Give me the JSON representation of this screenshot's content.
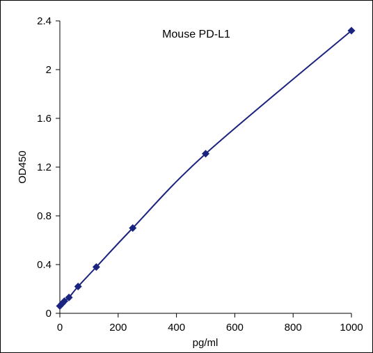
{
  "chart_data": {
    "type": "scatter",
    "title": "Mouse PD-L1",
    "xlabel": "pg/ml",
    "ylabel": "OD450",
    "xlim": [
      0,
      1000
    ],
    "ylim": [
      0,
      2.4
    ],
    "xticks": [
      "0",
      "200",
      "400",
      "600",
      "800",
      "1000"
    ],
    "yticks": [
      "0",
      "0.4",
      "0.8",
      "1.2",
      "1.6",
      "2",
      "2.4"
    ],
    "grid": false,
    "series": [
      {
        "x": [
          0,
          7.8,
          15.6,
          31.25,
          62.5,
          125,
          250,
          500,
          1000
        ],
        "y": [
          0.06,
          0.08,
          0.1,
          0.13,
          0.22,
          0.38,
          0.7,
          1.31,
          2.32
        ],
        "color": "#1a237e",
        "marker": "diamond",
        "line": "smooth"
      }
    ]
  }
}
